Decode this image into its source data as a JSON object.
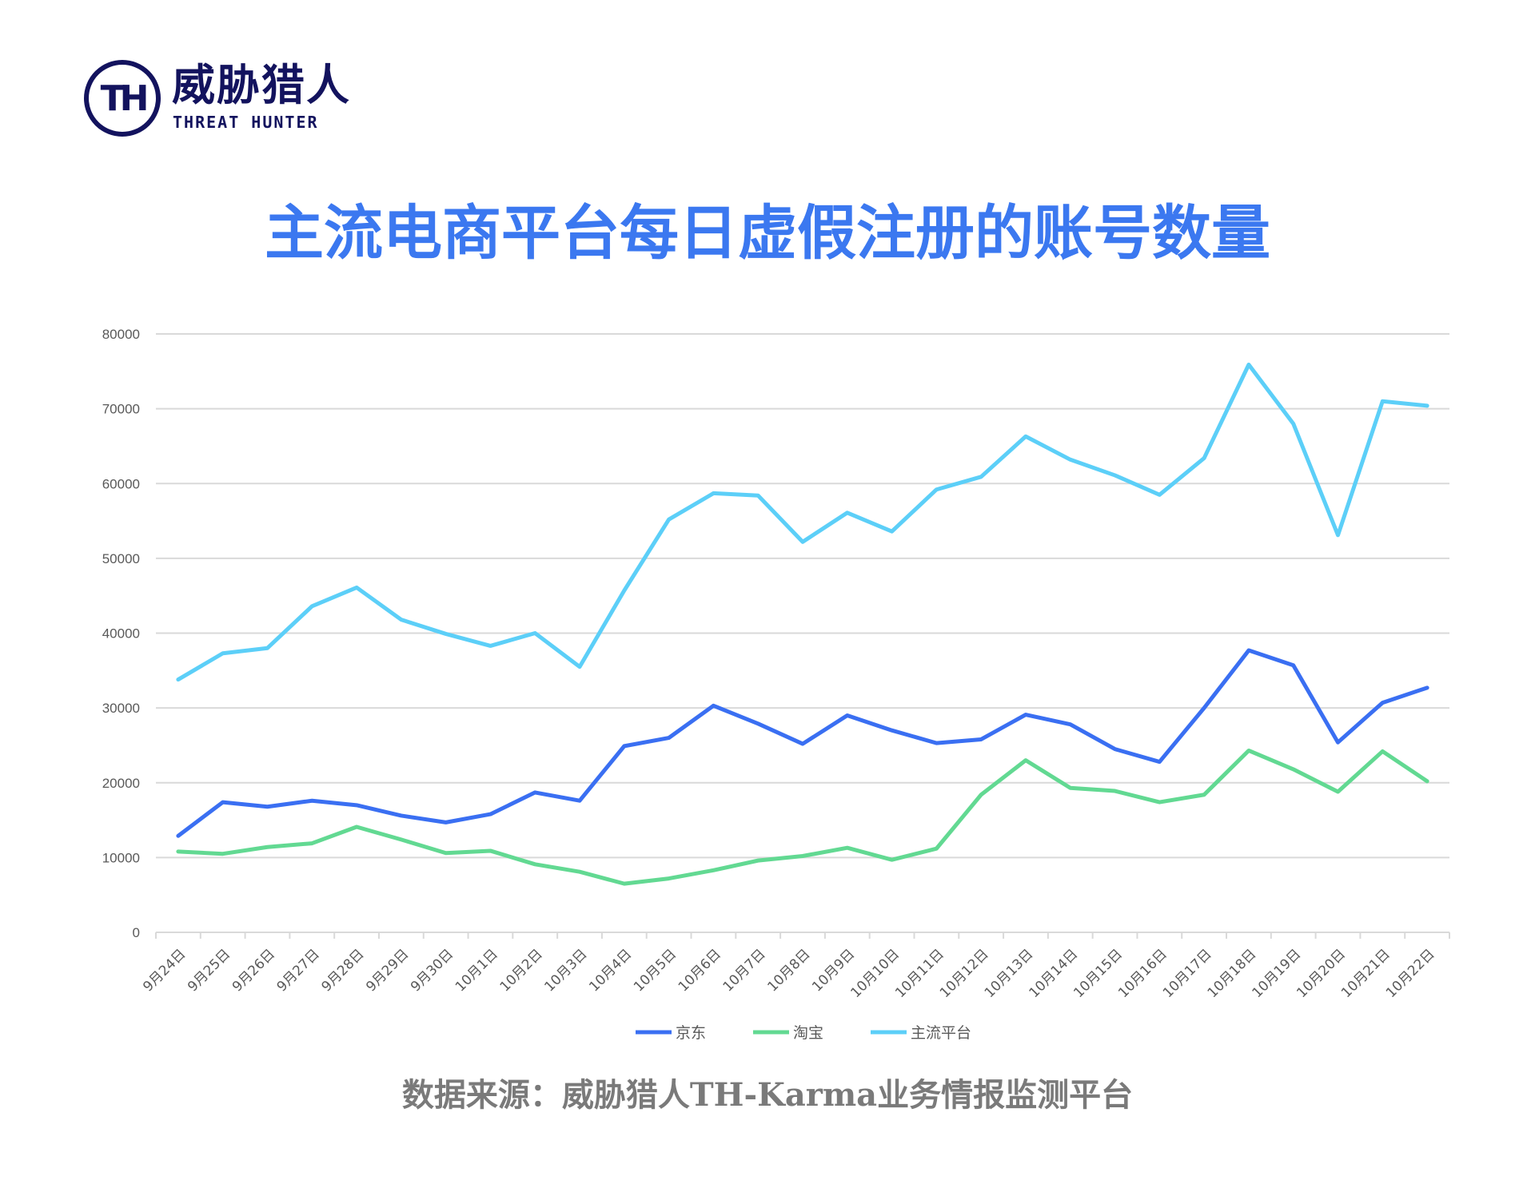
{
  "logo": {
    "cn": "威胁猎人",
    "en": "THREAT HUNTER",
    "mark": "TH"
  },
  "title": "主流电商平台每日虚假注册的账号数量",
  "source": "数据来源：威胁猎人TH-Karma业务情报监测平台",
  "chart_data": {
    "type": "line",
    "title": "主流电商平台每日虚假注册的账号数量",
    "xlabel": "",
    "ylabel": "",
    "ylim": [
      0,
      80000
    ],
    "yticks": [
      0,
      10000,
      20000,
      30000,
      40000,
      50000,
      60000,
      70000,
      80000
    ],
    "grid": true,
    "legend": "bottom",
    "categories": [
      "9月24日",
      "9月25日",
      "9月26日",
      "9月27日",
      "9月28日",
      "9月29日",
      "9月30日",
      "10月1日",
      "10月2日",
      "10月3日",
      "10月4日",
      "10月5日",
      "10月6日",
      "10月7日",
      "10月8日",
      "10月9日",
      "10月10日",
      "10月11日",
      "10月12日",
      "10月13日",
      "10月14日",
      "10月15日",
      "10月16日",
      "10月17日",
      "10月18日",
      "10月19日",
      "10月20日",
      "10月21日",
      "10月22日"
    ],
    "series": [
      {
        "name": "京东",
        "color": "#3a6ff2",
        "values": [
          12900,
          17400,
          16800,
          17600,
          17000,
          15600,
          14700,
          15800,
          18700,
          17600,
          24900,
          26000,
          30300,
          27900,
          25200,
          29000,
          27000,
          25300,
          25800,
          29100,
          27800,
          24500,
          22800,
          30000,
          37700,
          35700,
          25400,
          30700,
          32700
        ]
      },
      {
        "name": "淘宝",
        "color": "#62d992",
        "values": [
          10800,
          10500,
          11400,
          11900,
          14100,
          12400,
          10600,
          10900,
          9100,
          8100,
          6500,
          7200,
          8300,
          9600,
          10200,
          11300,
          9700,
          11200,
          18400,
          23000,
          19300,
          18900,
          17400,
          18400,
          24300,
          21800,
          18800,
          24200,
          20200
        ]
      },
      {
        "name": "主流平台",
        "color": "#5ccff8",
        "values": [
          33800,
          37300,
          38000,
          43600,
          46100,
          41800,
          39900,
          38300,
          40000,
          35500,
          45700,
          55200,
          58700,
          58400,
          52200,
          56100,
          53600,
          59200,
          60900,
          66300,
          63200,
          61100,
          58500,
          63400,
          75900,
          68000,
          53100,
          71000,
          70400
        ]
      }
    ]
  }
}
